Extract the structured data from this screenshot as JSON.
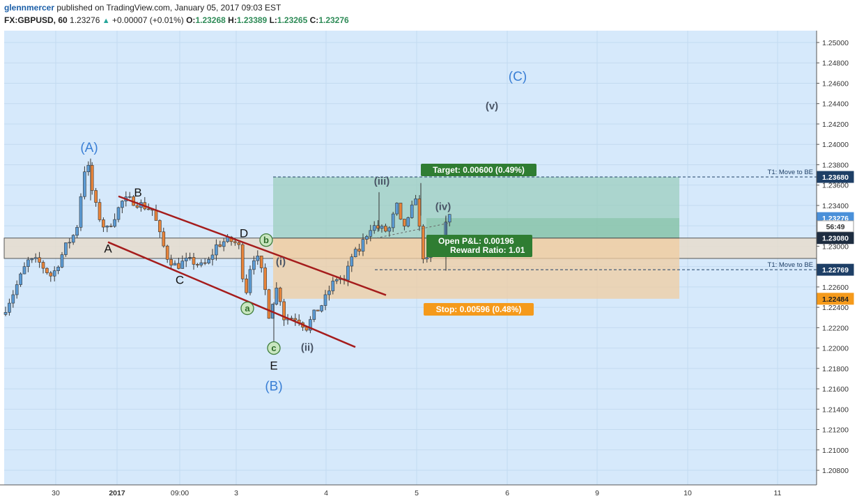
{
  "header": {
    "username": "glennmercer",
    "published": "published on TradingView.com, January 05, 2017 09:03 EST",
    "symbol": "FX:GBPUSD, 60",
    "last": "1.23276",
    "change": "+0.00007 (+0.01%)",
    "o_label": "O:",
    "o_value": "1.23268",
    "h_label": "H:",
    "h_value": "1.23389",
    "l_label": "L:",
    "l_value": "1.23265",
    "c_label": "C:",
    "c_value": "1.23276"
  },
  "colors": {
    "background": "#d6e9fb",
    "bull": "#5b9bd5",
    "bear": "#e8843a",
    "channel": "#a51c1c",
    "target_fill": "#9ccdbf",
    "stop_fill": "#f0cca0",
    "target_label": "#2f7d32",
    "stop_label": "#f59a1b"
  },
  "chart_data": {
    "type": "candlestick",
    "ylim": [
      1.207,
      1.252
    ],
    "y_ticks": [
      "1.25000",
      "1.24800",
      "1.24600",
      "1.24400",
      "1.24200",
      "1.24000",
      "1.23800",
      "1.23600",
      "1.23400",
      "1.23200",
      "1.23000",
      "1.22800",
      "1.22600",
      "1.22400",
      "1.22200",
      "1.22000",
      "1.21800",
      "1.21600",
      "1.21400",
      "1.21200",
      "1.21000",
      "1.20800"
    ],
    "x_ticks": [
      "30",
      "2017",
      "09:00",
      "3",
      "4",
      "5",
      "6",
      "9",
      "10",
      "11"
    ],
    "path": [
      [
        0,
        1.2225
      ],
      [
        10,
        1.2235
      ],
      [
        25,
        1.2255
      ],
      [
        45,
        1.2285
      ],
      [
        60,
        1.2285
      ],
      [
        80,
        1.227
      ],
      [
        100,
        1.23
      ],
      [
        115,
        1.2315
      ],
      [
        125,
        1.237
      ],
      [
        130,
        1.2385
      ],
      [
        140,
        1.2345
      ],
      [
        150,
        1.2325
      ],
      [
        158,
        1.2315
      ],
      [
        170,
        1.233
      ],
      [
        182,
        1.2345
      ],
      [
        195,
        1.2345
      ],
      [
        210,
        1.234
      ],
      [
        225,
        1.2335
      ],
      [
        235,
        1.231
      ],
      [
        245,
        1.229
      ],
      [
        258,
        1.228
      ],
      [
        270,
        1.2285
      ],
      [
        282,
        1.2285
      ],
      [
        295,
        1.228
      ],
      [
        305,
        1.2285
      ],
      [
        315,
        1.23
      ],
      [
        328,
        1.2305
      ],
      [
        340,
        1.2305
      ],
      [
        348,
        1.23
      ],
      [
        352,
        1.2285
      ],
      [
        357,
        1.2245
      ],
      [
        362,
        1.2275
      ],
      [
        370,
        1.229
      ],
      [
        378,
        1.2285
      ],
      [
        383,
        1.2265
      ],
      [
        390,
        1.2245
      ],
      [
        393,
        1.222
      ],
      [
        398,
        1.2255
      ],
      [
        405,
        1.226
      ],
      [
        412,
        1.223
      ],
      [
        420,
        1.223
      ],
      [
        432,
        1.223
      ],
      [
        445,
        1.222
      ],
      [
        458,
        1.2235
      ],
      [
        470,
        1.2245
      ],
      [
        480,
        1.226
      ],
      [
        490,
        1.227
      ],
      [
        500,
        1.2265
      ],
      [
        510,
        1.229
      ],
      [
        520,
        1.2295
      ],
      [
        530,
        1.231
      ],
      [
        538,
        1.232
      ],
      [
        548,
        1.2318
      ],
      [
        558,
        1.2315
      ],
      [
        566,
        1.2318
      ],
      [
        574,
        1.2342
      ],
      [
        582,
        1.2318
      ],
      [
        592,
        1.2325
      ],
      [
        600,
        1.2345
      ],
      [
        604,
        1.2355
      ],
      [
        608,
        1.231
      ],
      [
        613,
        1.229
      ],
      [
        617,
        1.228
      ],
      [
        622,
        1.23
      ],
      [
        630,
        1.2295
      ],
      [
        638,
        1.23
      ],
      [
        646,
        1.2325
      ],
      [
        650,
        1.23276
      ]
    ],
    "wave_labels": [
      {
        "text": "(A)",
        "x": 128,
        "price": 1.2397,
        "style": "blue-large"
      },
      {
        "text": "B",
        "x": 198,
        "price": 1.2353,
        "style": "black"
      },
      {
        "text": "A",
        "x": 155,
        "price": 1.2298,
        "style": "black"
      },
      {
        "text": "C",
        "x": 258,
        "price": 1.2267,
        "style": "black"
      },
      {
        "text": "D",
        "x": 350,
        "price": 1.2313,
        "style": "black"
      },
      {
        "text": "E",
        "x": 393,
        "price": 1.2183,
        "style": "black"
      },
      {
        "text": "(B)",
        "x": 393,
        "price": 1.2163,
        "style": "blue-large"
      },
      {
        "text": "b",
        "x": 382,
        "price": 1.2306,
        "style": "green-circle"
      },
      {
        "text": "a",
        "x": 355,
        "price": 1.2239,
        "style": "green-circle"
      },
      {
        "text": "c",
        "x": 393,
        "price": 1.22,
        "style": "green-circle"
      },
      {
        "text": "(i)",
        "x": 403,
        "price": 1.2285,
        "style": "gray"
      },
      {
        "text": "(ii)",
        "x": 441,
        "price": 1.2201,
        "style": "gray"
      },
      {
        "text": "(iii)",
        "x": 548,
        "price": 1.2364,
        "style": "gray"
      },
      {
        "text": "(iv)",
        "x": 636,
        "price": 1.2339,
        "style": "gray"
      },
      {
        "text": "(v)",
        "x": 706,
        "price": 1.2438,
        "style": "gray"
      },
      {
        "text": "(C)",
        "x": 743,
        "price": 1.2467,
        "style": "blue-large"
      }
    ],
    "channel": {
      "upper": [
        [
          170,
          1.2349
        ],
        [
          554,
          1.2252
        ]
      ],
      "lower": [
        [
          155,
          1.2304
        ],
        [
          510,
          1.2201
        ]
      ]
    },
    "position": {
      "x_start": 392,
      "x_end": 975,
      "entry": 1.2308,
      "target": 1.2368,
      "stop": 1.22484,
      "current": 1.23276,
      "target_label": "Target: 0.00600 (0.49%)",
      "stop_label": "Stop: 0.00596 (0.48%)",
      "pnl_label": "Open P&L: 0.00196",
      "rr_label": "Reward Ratio: 1.01"
    },
    "support_band": [
      1.2288,
      1.2308
    ],
    "be_lines": [
      {
        "price": 1.2368,
        "label": "T1: Move to BE",
        "x_start": 392
      },
      {
        "price": 1.22769,
        "label": "T1: Move to BE",
        "x_start": 538
      }
    ],
    "price_tags": [
      {
        "price": 1.2368,
        "text": "1.23680",
        "bg": "#1e3f66",
        "color": "#ffffff"
      },
      {
        "price": 1.23276,
        "text": "1.23276",
        "bg": "#4a90d9",
        "color": "#ffffff"
      },
      {
        "price": 1.23195,
        "text": "56:49",
        "bg": "#ffffff",
        "color": "#333333"
      },
      {
        "price": 1.2308,
        "text": "1.23080",
        "bg": "#1e2d40",
        "color": "#ffffff"
      },
      {
        "price": 1.22769,
        "text": "1.22769",
        "bg": "#1e3f66",
        "color": "#ffffff"
      },
      {
        "price": 1.22484,
        "text": "1.22484",
        "bg": "#f59a1b",
        "color": "#222222"
      }
    ]
  }
}
